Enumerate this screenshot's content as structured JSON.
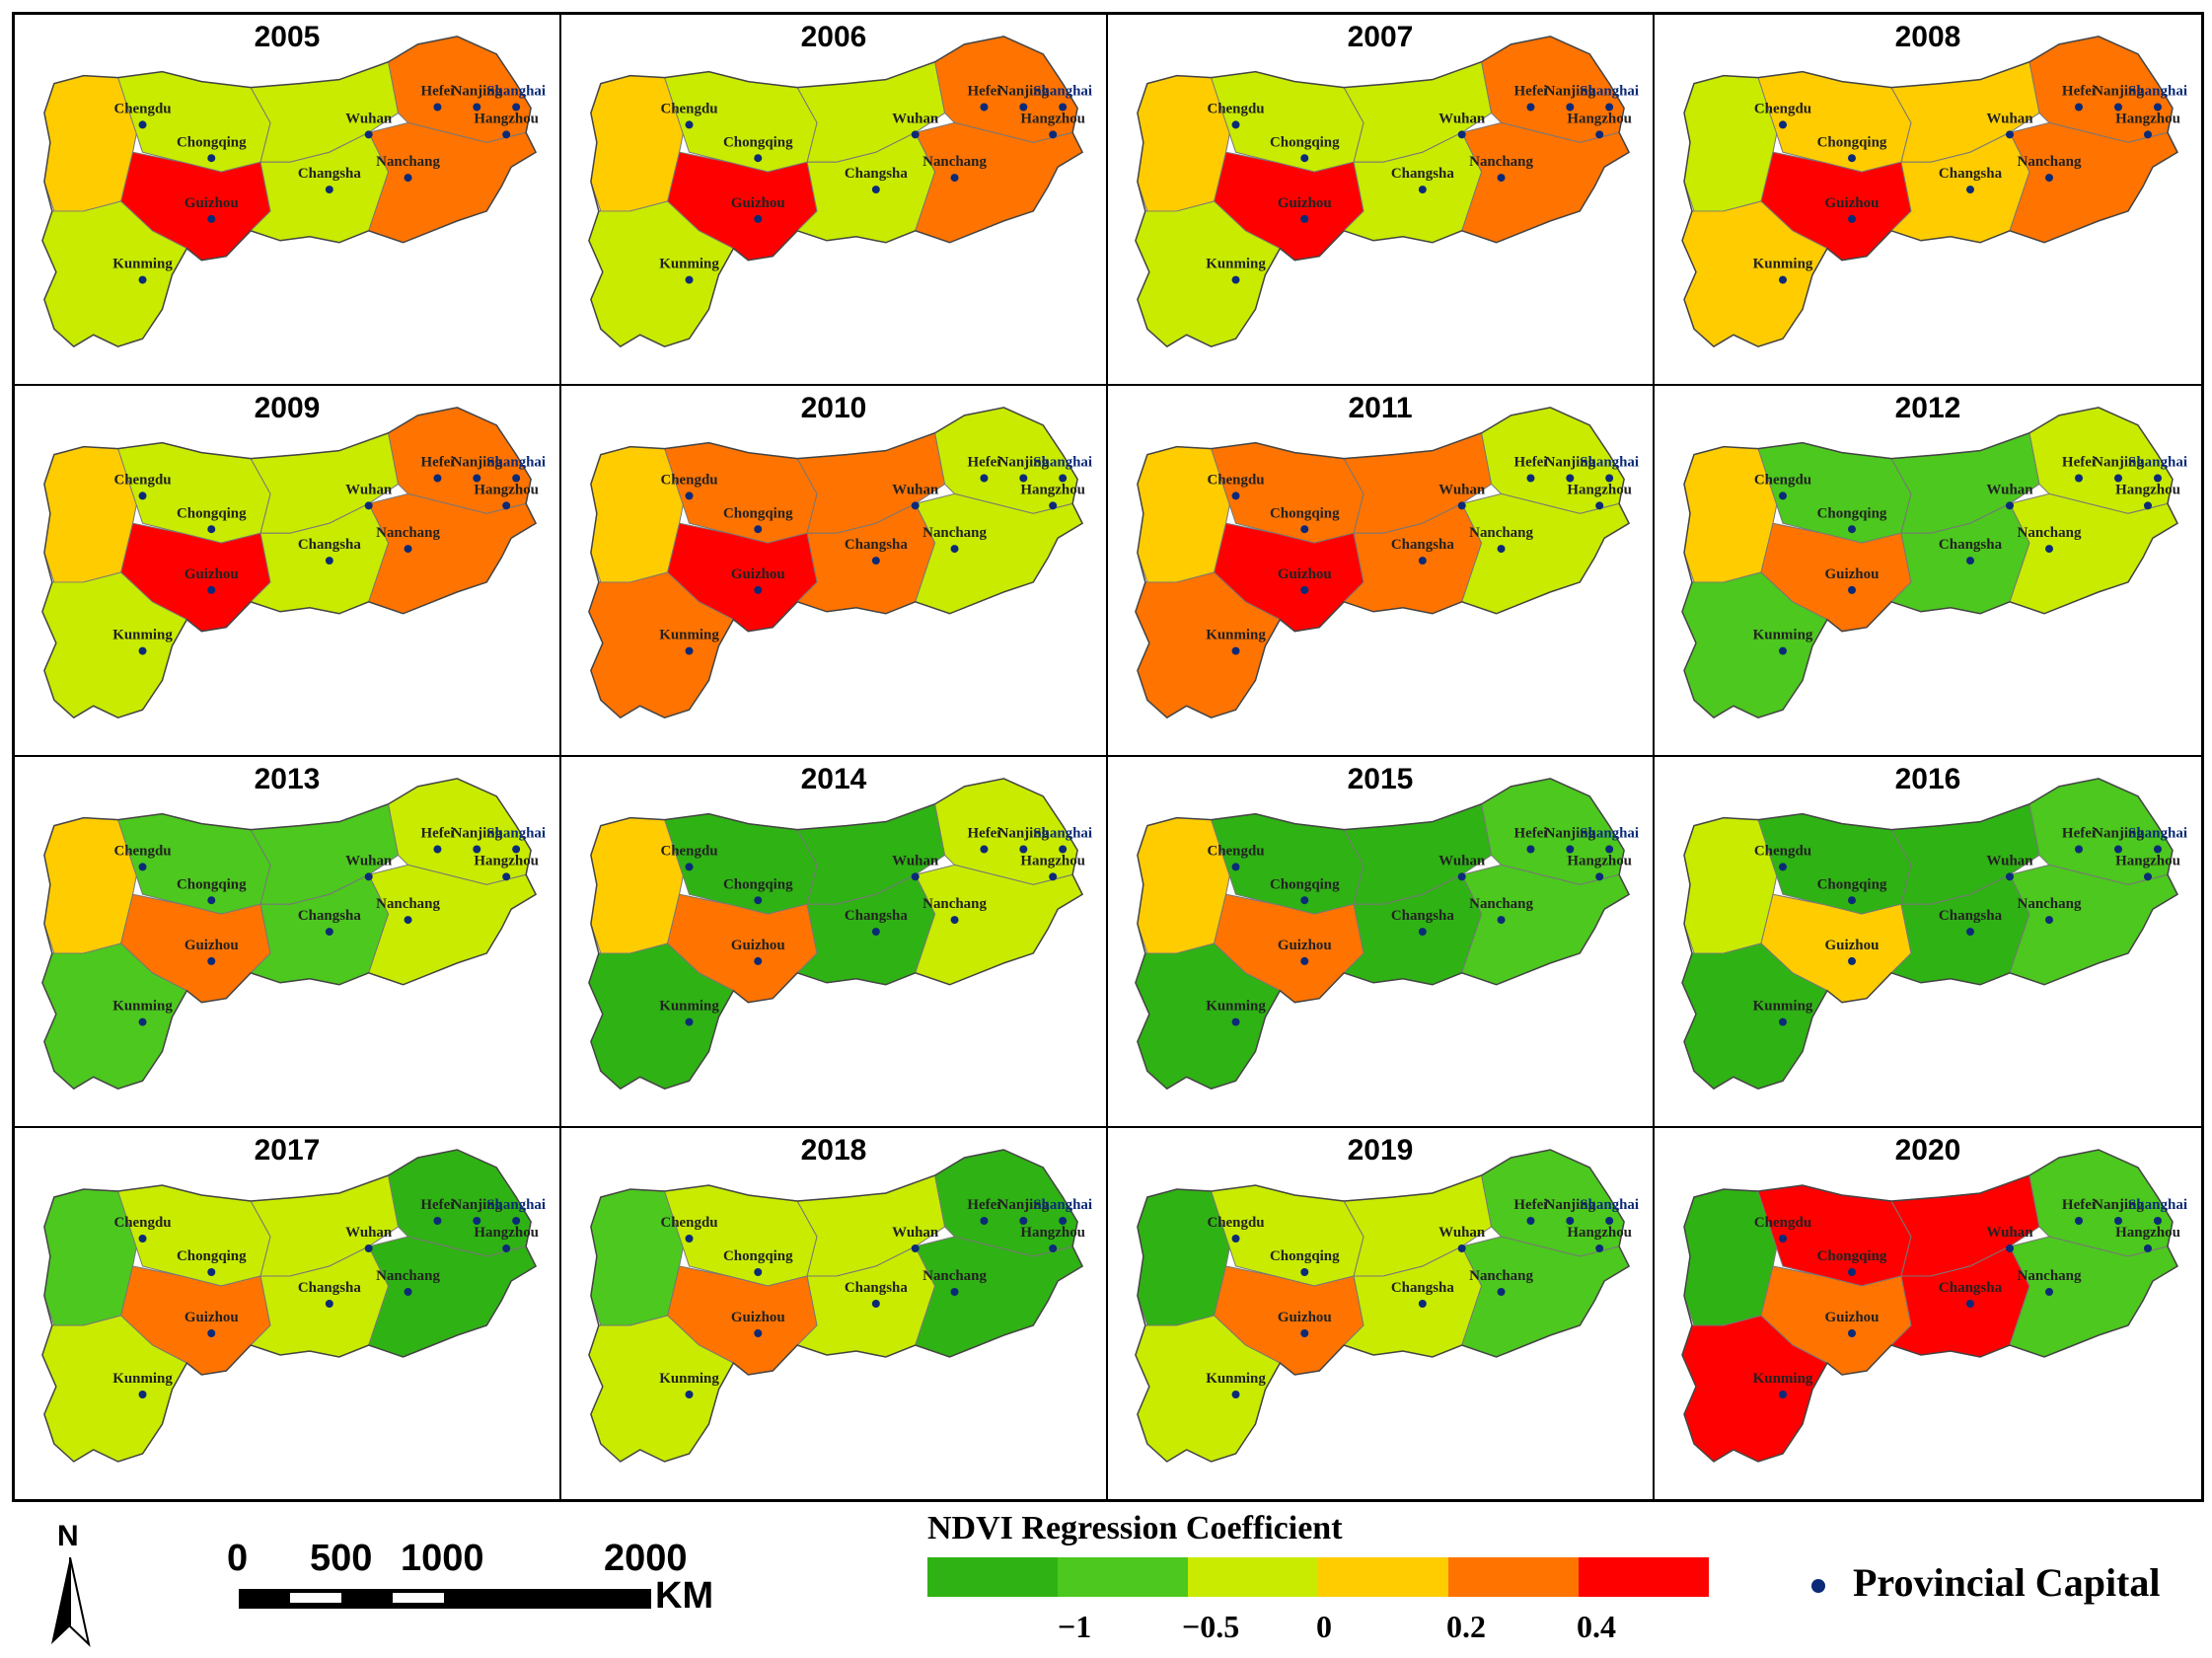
{
  "panels": [
    {
      "year": "2005",
      "colors": [
        "#ffcc00",
        "#ff7300",
        "#ff0000",
        "#c8eb00"
      ]
    },
    {
      "year": "2006",
      "colors": [
        "#ffcc00",
        "#ff7300",
        "#ff0000",
        "#c8eb00"
      ]
    },
    {
      "year": "2007",
      "colors": [
        "#ffcc00",
        "#ff7300",
        "#ff0000",
        "#c8eb00"
      ]
    },
    {
      "year": "2008",
      "colors": [
        "#c8eb00",
        "#ff7300",
        "#ff0000",
        "#ffcc00"
      ]
    },
    {
      "year": "2009",
      "colors": [
        "#ffcc00",
        "#ff7300",
        "#ff0000",
        "#c8eb00"
      ]
    },
    {
      "year": "2010",
      "colors": [
        "#ffcc00",
        "#c8eb00",
        "#ff0000",
        "#ff7300"
      ]
    },
    {
      "year": "2011",
      "colors": [
        "#ffcc00",
        "#c8eb00",
        "#ff0000",
        "#ff7300"
      ]
    },
    {
      "year": "2012",
      "colors": [
        "#ffcc00",
        "#c8eb00",
        "#ff7300",
        "#4cc81e"
      ]
    },
    {
      "year": "2013",
      "colors": [
        "#ffcc00",
        "#c8eb00",
        "#ff7300",
        "#4cc81e"
      ]
    },
    {
      "year": "2014",
      "colors": [
        "#ffcc00",
        "#c8eb00",
        "#ff7300",
        "#2fb214"
      ]
    },
    {
      "year": "2015",
      "colors": [
        "#ffcc00",
        "#4cc81e",
        "#ff7300",
        "#2fb214"
      ]
    },
    {
      "year": "2016",
      "colors": [
        "#c8eb00",
        "#4cc81e",
        "#ffcc00",
        "#2fb214"
      ]
    },
    {
      "year": "2017",
      "colors": [
        "#4cc81e",
        "#2fb214",
        "#ff7300",
        "#c8eb00"
      ]
    },
    {
      "year": "2018",
      "colors": [
        "#4cc81e",
        "#2fb214",
        "#ff7300",
        "#c8eb00"
      ]
    },
    {
      "year": "2019",
      "colors": [
        "#2fb214",
        "#4cc81e",
        "#ff7300",
        "#c8eb00"
      ]
    },
    {
      "year": "2020",
      "colors": [
        "#2fb214",
        "#4cc81e",
        "#ff7300",
        "#ff0000"
      ]
    }
  ],
  "cities": [
    "Chengdu",
    "Chongqing",
    "Wuhan",
    "Hefei",
    "Nanjing",
    "Shanghai",
    "Hangzhou",
    "Changsha",
    "Nanchang",
    "Guizhou",
    "Kunming"
  ],
  "scale": {
    "labels": [
      "0",
      "500",
      "1000",
      "2000"
    ],
    "unit": "KM"
  },
  "north": "N",
  "legend": {
    "title": "NDVI Regression Coefficient",
    "colors": [
      "#2fb214",
      "#4cc81e",
      "#c8eb00",
      "#ffcc00",
      "#ff7300",
      "#ff0000"
    ],
    "ticks": [
      "−1",
      "−0.5",
      "0",
      "0.2",
      "0.4"
    ]
  },
  "capital_label": "Provincial Capital"
}
